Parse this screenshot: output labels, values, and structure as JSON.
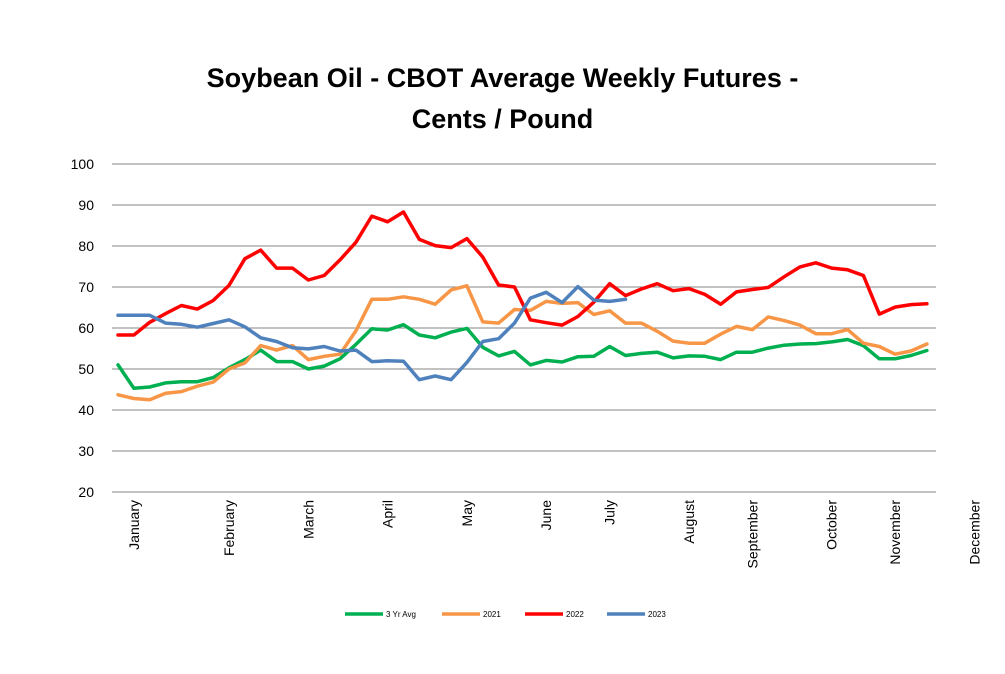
{
  "chart_data": {
    "type": "line",
    "title": [
      "Soybean Oil - CBOT Average Weekly Futures -",
      "Cents / Pound"
    ],
    "xlabel": "",
    "ylabel": "",
    "ylim": [
      20,
      100
    ],
    "yticks": [
      20,
      30,
      40,
      50,
      60,
      70,
      80,
      90,
      100
    ],
    "grid": true,
    "legend_position": "bottom",
    "x_weeks": 52,
    "month_labels": [
      {
        "label": "January",
        "week": 1
      },
      {
        "label": "February",
        "week": 7
      },
      {
        "label": "March",
        "week": 12
      },
      {
        "label": "April",
        "week": 17
      },
      {
        "label": "May",
        "week": 22
      },
      {
        "label": "June",
        "week": 27
      },
      {
        "label": "July",
        "week": 31
      },
      {
        "label": "August",
        "week": 36
      },
      {
        "label": "September",
        "week": 40
      },
      {
        "label": "October",
        "week": 45
      },
      {
        "label": "November",
        "week": 49
      },
      {
        "label": "December",
        "week": 54
      }
    ],
    "series": [
      {
        "name": "3 Yr Avg",
        "color": "#00b050",
        "values": [
          51,
          45.3,
          45.6,
          46.6,
          46.9,
          46.9,
          47.9,
          50.3,
          52.3,
          54.6,
          51.8,
          51.8,
          50,
          50.7,
          52.5,
          56,
          59.8,
          59.5,
          60.8,
          58.3,
          57.6,
          59,
          59.9,
          55.3,
          53.2,
          54.3,
          51,
          52.1,
          51.7,
          53,
          53.1,
          55.5,
          53.3,
          53.8,
          54.1,
          52.7,
          53.2,
          53.1,
          52.3,
          54.1,
          54.1,
          55.1,
          55.8,
          56.1,
          56.2,
          56.6,
          57.2,
          55.7,
          52.5,
          52.5,
          53.3,
          54.5
        ]
      },
      {
        "name": "2021",
        "color": "#f79646",
        "values": [
          43.7,
          42.8,
          42.5,
          44.1,
          44.5,
          45.8,
          46.8,
          50,
          51.5,
          55.7,
          54.6,
          55.7,
          52.3,
          53.1,
          53.6,
          59.3,
          67,
          67,
          67.6,
          67,
          65.8,
          69.3,
          70.3,
          61.5,
          61.2,
          64.5,
          64.3,
          66.5,
          66,
          66.2,
          63.3,
          64.2,
          61.2,
          61.2,
          59.2,
          56.8,
          56.3,
          56.3,
          58.5,
          60.4,
          59.6,
          62.7,
          61.8,
          60.7,
          58.6,
          58.6,
          59.6,
          56.3,
          55.5,
          53.6,
          54.4,
          56.1
        ]
      },
      {
        "name": "2022",
        "color": "#ff0000",
        "values": [
          58.3,
          58.3,
          61.4,
          63.5,
          65.5,
          64.6,
          66.7,
          70.4,
          76.9,
          79,
          74.6,
          74.6,
          71.7,
          72.8,
          76.6,
          80.9,
          87.3,
          85.9,
          88.3,
          81.6,
          80.1,
          79.6,
          81.8,
          77.3,
          70.5,
          70,
          62,
          61.3,
          60.7,
          62.8,
          66.3,
          70.8,
          67.9,
          69.5,
          70.8,
          69.1,
          69.6,
          68.2,
          65.8,
          68.8,
          69.4,
          69.9,
          72.5,
          74.9,
          75.9,
          74.6,
          74.2,
          72.8,
          63.4,
          65.1,
          65.7,
          65.9
        ]
      },
      {
        "name": "2023",
        "color": "#4f81bd",
        "values": [
          63.1,
          63.1,
          63.1,
          61.2,
          60.9,
          60.2,
          61.1,
          62,
          60.3,
          57.6,
          56.7,
          55.2,
          54.9,
          55.5,
          54.4,
          54.6,
          51.8,
          52,
          51.9,
          47.4,
          48.3,
          47.4,
          51.6,
          56.7,
          57.4,
          61.2,
          67.3,
          68.7,
          66.2,
          70.1,
          66.8,
          66.5,
          67
        ]
      }
    ]
  }
}
